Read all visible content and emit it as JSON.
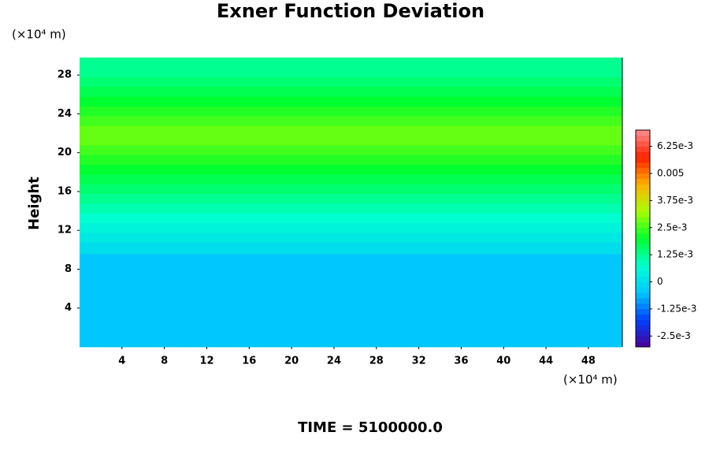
{
  "chart_data": {
    "type": "contour",
    "title": "Exner Function Deviation",
    "ylabel": "Height",
    "x_unit": "(×10⁴ m)",
    "y_unit": "(×10⁴ m)",
    "annotation": "TIME = 5100000.0",
    "xlim": [
      0,
      51.2
    ],
    "ylim": [
      0,
      29.8
    ],
    "xticks": [
      4,
      8,
      12,
      16,
      20,
      24,
      28,
      32,
      36,
      40,
      44,
      48
    ],
    "yticks": [
      4,
      8,
      12,
      16,
      20,
      24,
      28
    ],
    "y_edges": [
      0,
      9.6,
      10.8,
      11.8,
      12.8,
      13.8,
      14.8,
      15.8,
      16.8,
      17.8,
      18.8,
      19.8,
      20.8,
      22.8,
      23.8,
      24.8,
      25.8,
      26.8,
      27.8,
      29.8
    ],
    "values": [
      -0.0005,
      0,
      0.00025,
      0.0005,
      0.00075,
      0.001,
      0.00125,
      0.0015,
      0.00175,
      0.002,
      0.00225,
      0.0025,
      0.00275,
      0.0025,
      0.00225,
      0.002,
      0.00175,
      0.0015,
      0.00125
    ],
    "clim": [
      -0.003,
      0.007
    ],
    "contour_interval": 0.00025,
    "cticks": [
      {
        "value": 0.00625,
        "label": "6.25e-3"
      },
      0.005,
      {
        "value": 0.00375,
        "label": "3.75e-3"
      },
      {
        "value": 0.0025,
        "label": "2.5e-3"
      },
      {
        "value": 0.00125,
        "label": "1.25e-3"
      },
      0,
      {
        "value": -0.00125,
        "label": "-1.25e-3"
      },
      {
        "value": -0.0025,
        "label": "-2.5e-3"
      }
    ],
    "colormap": [
      "#4b0096",
      "#0040ff",
      "#00c8ff",
      "#00ffd0",
      "#00ff30",
      "#a8ff00",
      "#ffb000",
      "#ff2000",
      "#ff9090"
    ]
  }
}
